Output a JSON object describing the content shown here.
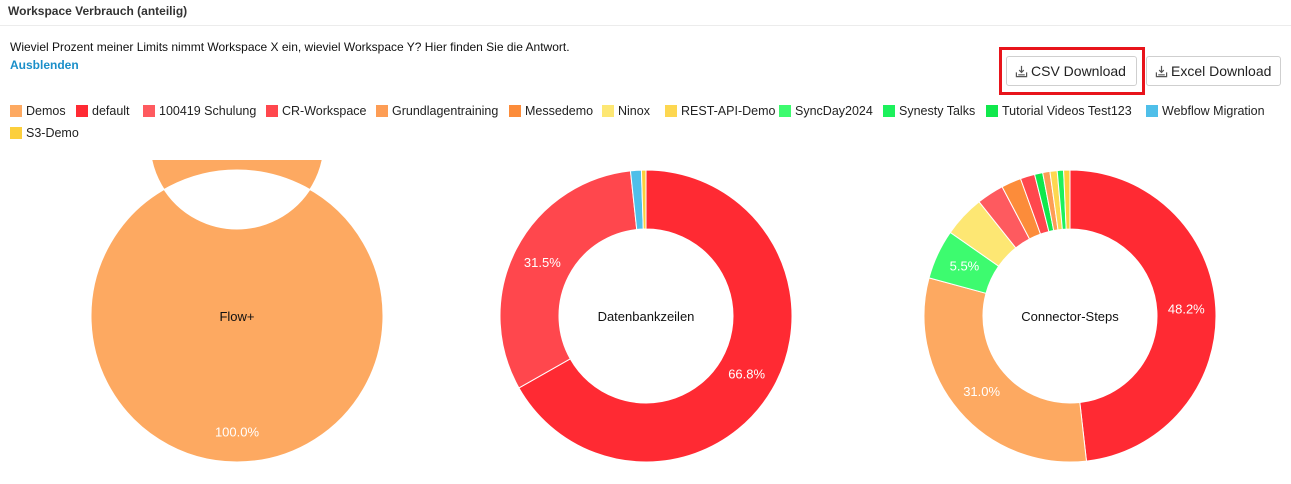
{
  "header": {
    "title": "Workspace Verbrauch (anteilig)"
  },
  "intro": {
    "description": "Wieviel Prozent meiner Limits nimmt Workspace X ein, wieviel Workspace Y? Hier finden Sie die Antwort.",
    "hide_label": "Ausblenden"
  },
  "toolbar": {
    "csv_label": "CSV Download",
    "excel_label": "Excel Download",
    "download_icon": "download-tray-icon",
    "highlight_color": "#e8141b"
  },
  "legend": [
    {
      "label": "Demos",
      "color": "#fda961"
    },
    {
      "label": "default",
      "color": "#ff2a33"
    },
    {
      "label": "100419 Schulung",
      "color": "#fe5a5f"
    },
    {
      "label": "CR-Workspace",
      "color": "#ff474d"
    },
    {
      "label": "Grundlagentraining",
      "color": "#fd9d55"
    },
    {
      "label": "Messedemo",
      "color": "#fc8c3a"
    },
    {
      "label": "Ninox",
      "color": "#fde773"
    },
    {
      "label": "REST-API-Demo",
      "color": "#fdd750"
    },
    {
      "label": "SyncDay2024",
      "color": "#3dfb6f"
    },
    {
      "label": "Synesty Talks",
      "color": "#1cf15c"
    },
    {
      "label": "Tutorial Videos Test123",
      "color": "#10e84c"
    },
    {
      "label": "Webflow Migration",
      "color": "#4fbfe9"
    },
    {
      "label": "S3-Demo",
      "color": "#fccf3c"
    }
  ],
  "chart_data": [
    {
      "type": "pie",
      "title": "Flow+",
      "categories": [
        "Demos"
      ],
      "values": [
        100.0
      ],
      "labels": [
        "100.0%"
      ]
    },
    {
      "type": "pie",
      "title": "Datenbankzeilen",
      "categories": [
        "default",
        "CR-Workspace",
        "Webflow Migration",
        "S3-Demo"
      ],
      "values": [
        66.8,
        31.5,
        1.2,
        0.5
      ],
      "labels": [
        "66.8%",
        "31.5%",
        "",
        ""
      ]
    },
    {
      "type": "pie",
      "title": "Connector-Steps",
      "categories": [
        "default",
        "Demos",
        "SyncDay2024",
        "Ninox",
        "100419 Schulung",
        "Messedemo",
        "CR-Workspace",
        "Tutorial Videos Test123",
        "Grundlagentraining",
        "REST-API-Demo",
        "Synesty Talks",
        "S3-Demo"
      ],
      "values": [
        48.2,
        31.0,
        5.5,
        4.6,
        3.0,
        2.2,
        1.6,
        0.9,
        0.8,
        0.8,
        0.7,
        0.7
      ],
      "labels": [
        "48.2%",
        "31.0%",
        "5.5%",
        "",
        "",
        "",
        "",
        "",
        "",
        "",
        "",
        ""
      ]
    }
  ]
}
